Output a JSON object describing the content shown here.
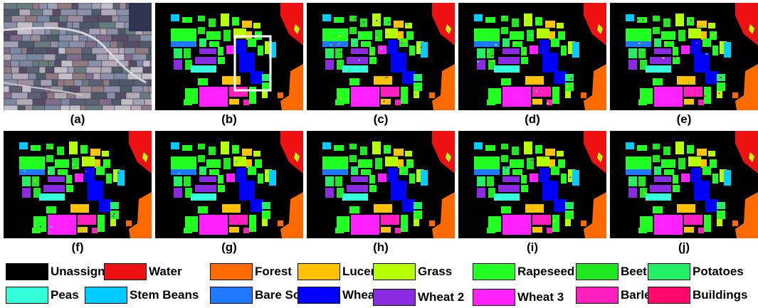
{
  "figure": {
    "panel_labels": [
      "(a)",
      "(b)",
      "(c)",
      "(d)",
      "(e)",
      "(f)",
      "(g)",
      "(h)",
      "(i)",
      "(j)"
    ],
    "panels": [
      {
        "id": "a",
        "content": "false-color image"
      },
      {
        "id": "b",
        "content": "ground truth map",
        "highlight": true
      },
      {
        "id": "c",
        "content": "classification map",
        "noise": "high"
      },
      {
        "id": "d",
        "content": "classification map",
        "noise": "medium"
      },
      {
        "id": "e",
        "content": "classification map",
        "noise": "medium"
      },
      {
        "id": "f",
        "content": "classification map",
        "noise": "medium"
      },
      {
        "id": "g",
        "content": "classification map",
        "noise": "low"
      },
      {
        "id": "h",
        "content": "classification map",
        "noise": "low"
      },
      {
        "id": "i",
        "content": "classification map",
        "noise": "low"
      },
      {
        "id": "j",
        "content": "classification map",
        "noise": "low"
      }
    ]
  },
  "legend": [
    {
      "label": "Unassigned",
      "color": "#000000"
    },
    {
      "label": "Water",
      "color": "#ee1111"
    },
    {
      "label": "Forest",
      "color": "#ff6a00"
    },
    {
      "label": "Lucern",
      "color": "#ffc200"
    },
    {
      "label": "Grass",
      "color": "#b5ff00"
    },
    {
      "label": "Rapeseed",
      "color": "#22ff22"
    },
    {
      "label": "Beet",
      "color": "#20e820"
    },
    {
      "label": "Potatoes",
      "color": "#22ee66"
    },
    {
      "label": "Peas",
      "color": "#33ffdd"
    },
    {
      "label": "Stem Beans",
      "color": "#00ccff"
    },
    {
      "label": "Bare Soil",
      "color": "#1e78ff"
    },
    {
      "label": "Wheat",
      "color": "#0000ff"
    },
    {
      "label": "Wheat 2",
      "color": "#8a2be2"
    },
    {
      "label": "Wheat 3",
      "color": "#ff22ff"
    },
    {
      "label": "Barley",
      "color": "#ff1fbf"
    },
    {
      "label": "Buildings",
      "color": "#ff0a6a"
    }
  ]
}
